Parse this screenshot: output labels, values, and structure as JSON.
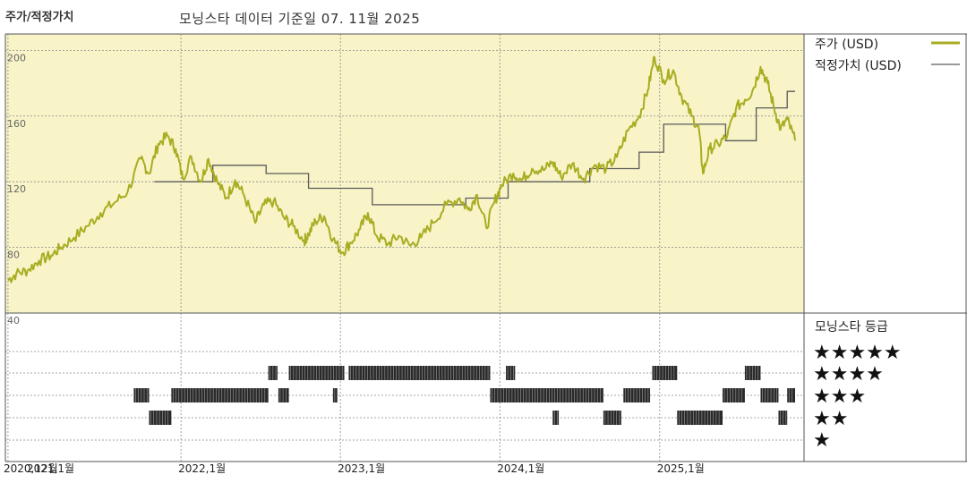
{
  "header": {
    "left_title": "주가/적정가치",
    "center_title": "모닝스타 데이터 기준일 07. 11월 2025"
  },
  "legend": {
    "price_label": "주가 (USD)",
    "fair_label": "적정가치 (USD)",
    "rating_title": "모닝스타 등급",
    "stars": [
      "★★★★★",
      "★★★★",
      "★★★",
      "★★",
      "★"
    ]
  },
  "colors": {
    "price_line": "#a8ad22",
    "fair_line": "#5a5a5a",
    "plot_bg": "#f8f4c8",
    "rating_bar": "#2a2a2a",
    "grid": "#888888"
  },
  "chart_data": [
    {
      "type": "line",
      "title": "",
      "ylim": [
        40,
        210
      ],
      "yticks": [
        40,
        80,
        120,
        160,
        200
      ],
      "x_tick_labels": [
        "2021,1월",
        "2022,1월",
        "2023,1월",
        "2024,1월",
        "2025,1월"
      ],
      "x_tick_overlap_label": "2020,12월",
      "series": [
        {
          "name": "주가 (USD)",
          "points": [
            [
              "2020-12-01",
              60
            ],
            [
              "2020-12-20",
              64
            ],
            [
              "2021-01-15",
              66
            ],
            [
              "2021-02-10",
              72
            ],
            [
              "2021-03-10",
              75
            ],
            [
              "2021-04-01",
              80
            ],
            [
              "2021-05-01",
              86
            ],
            [
              "2021-06-01",
              93
            ],
            [
              "2021-07-01",
              101
            ],
            [
              "2021-08-01",
              107
            ],
            [
              "2021-09-01",
              114
            ],
            [
              "2021-10-01",
              134
            ],
            [
              "2021-10-20",
              125
            ],
            [
              "2021-11-10",
              143
            ],
            [
              "2021-12-01",
              148
            ],
            [
              "2021-12-20",
              140
            ],
            [
              "2022-01-05",
              122
            ],
            [
              "2022-01-25",
              135
            ],
            [
              "2022-02-15",
              120
            ],
            [
              "2022-03-05",
              134
            ],
            [
              "2022-03-25",
              120
            ],
            [
              "2022-04-15",
              110
            ],
            [
              "2022-05-05",
              121
            ],
            [
              "2022-05-25",
              112
            ],
            [
              "2022-06-20",
              95
            ],
            [
              "2022-07-10",
              106
            ],
            [
              "2022-08-01",
              108
            ],
            [
              "2022-08-25",
              98
            ],
            [
              "2022-09-15",
              93
            ],
            [
              "2022-10-10",
              84
            ],
            [
              "2022-10-20",
              88
            ],
            [
              "2022-11-05",
              96
            ],
            [
              "2022-11-25",
              99
            ],
            [
              "2022-12-15",
              85
            ],
            [
              "2023-01-05",
              77
            ],
            [
              "2023-01-25",
              83
            ],
            [
              "2023-02-15",
              91
            ],
            [
              "2023-03-05",
              101
            ],
            [
              "2023-03-25",
              87
            ],
            [
              "2023-04-20",
              82
            ],
            [
              "2023-05-15",
              87
            ],
            [
              "2023-06-10",
              81
            ],
            [
              "2023-07-05",
              86
            ],
            [
              "2023-08-01",
              95
            ],
            [
              "2023-09-01",
              106
            ],
            [
              "2023-10-01",
              110
            ],
            [
              "2023-10-20",
              103
            ],
            [
              "2023-11-10",
              112
            ],
            [
              "2023-12-01",
              92
            ],
            [
              "2023-12-20",
              108
            ],
            [
              "2024-01-05",
              118
            ],
            [
              "2024-02-01",
              125
            ],
            [
              "2024-02-20",
              121
            ],
            [
              "2024-03-15",
              128
            ],
            [
              "2024-04-10",
              127
            ],
            [
              "2024-05-01",
              132
            ],
            [
              "2024-05-20",
              123
            ],
            [
              "2024-06-15",
              131
            ],
            [
              "2024-07-10",
              122
            ],
            [
              "2024-08-05",
              130
            ],
            [
              "2024-09-01",
              128
            ],
            [
              "2024-09-25",
              135
            ],
            [
              "2024-10-20",
              151
            ],
            [
              "2024-11-15",
              160
            ],
            [
              "2024-12-05",
              176
            ],
            [
              "2024-12-20",
              196
            ],
            [
              "2025-01-10",
              182
            ],
            [
              "2025-02-01",
              188
            ],
            [
              "2025-02-20",
              172
            ],
            [
              "2025-03-15",
              160
            ],
            [
              "2025-04-01",
              152
            ],
            [
              "2025-04-10",
              125
            ],
            [
              "2025-04-25",
              140
            ],
            [
              "2025-05-15",
              143
            ],
            [
              "2025-06-05",
              148
            ],
            [
              "2025-06-25",
              165
            ],
            [
              "2025-07-15",
              170
            ],
            [
              "2025-08-01",
              175
            ],
            [
              "2025-08-20",
              190
            ],
            [
              "2025-09-05",
              180
            ],
            [
              "2025-09-20",
              165
            ],
            [
              "2025-10-05",
              152
            ],
            [
              "2025-10-20",
              158
            ],
            [
              "2025-11-07",
              145
            ]
          ]
        },
        {
          "name": "적정가치 (USD)",
          "steps": [
            [
              "2021-11-01",
              120
            ],
            [
              "2022-03-15",
              130
            ],
            [
              "2022-07-15",
              125
            ],
            [
              "2022-10-20",
              116
            ],
            [
              "2023-03-15",
              106
            ],
            [
              "2023-10-15",
              110
            ],
            [
              "2024-01-20",
              120
            ],
            [
              "2024-07-25",
              128
            ],
            [
              "2024-11-15",
              138
            ],
            [
              "2025-01-10",
              155
            ],
            [
              "2025-06-01",
              145
            ],
            [
              "2025-08-10",
              165
            ],
            [
              "2025-10-20",
              175
            ]
          ]
        }
      ]
    },
    {
      "type": "heatmap",
      "title": "모닝스타 등급",
      "rows": [
        "★★★★★",
        "★★★★",
        "★★★",
        "★★",
        "★"
      ],
      "segments": [
        {
          "rating": 3,
          "start": "2021-09-15",
          "end": "2021-10-20"
        },
        {
          "rating": 2,
          "start": "2021-10-20",
          "end": "2021-12-10"
        },
        {
          "rating": 3,
          "start": "2021-12-10",
          "end": "2022-07-20"
        },
        {
          "rating": 4,
          "start": "2022-07-20",
          "end": "2022-08-10"
        },
        {
          "rating": 3,
          "start": "2022-08-12",
          "end": "2022-09-05"
        },
        {
          "rating": 4,
          "start": "2022-09-05",
          "end": "2023-01-10"
        },
        {
          "rating": 3,
          "start": "2022-12-15",
          "end": "2022-12-25"
        },
        {
          "rating": 4,
          "start": "2023-01-20",
          "end": "2023-12-10"
        },
        {
          "rating": 3,
          "start": "2023-12-10",
          "end": "2024-05-25"
        },
        {
          "rating": 4,
          "start": "2024-01-15",
          "end": "2024-02-05"
        },
        {
          "rating": 2,
          "start": "2024-05-01",
          "end": "2024-05-15"
        },
        {
          "rating": 3,
          "start": "2024-05-01",
          "end": "2024-08-25"
        },
        {
          "rating": 2,
          "start": "2024-08-25",
          "end": "2024-10-05"
        },
        {
          "rating": 3,
          "start": "2024-10-10",
          "end": "2024-12-10"
        },
        {
          "rating": 4,
          "start": "2024-12-15",
          "end": "2025-02-10"
        },
        {
          "rating": 2,
          "start": "2025-02-10",
          "end": "2025-05-25"
        },
        {
          "rating": 3,
          "start": "2025-05-25",
          "end": "2025-07-15"
        },
        {
          "rating": 4,
          "start": "2025-07-15",
          "end": "2025-08-20"
        },
        {
          "rating": 3,
          "start": "2025-08-20",
          "end": "2025-09-30"
        },
        {
          "rating": 2,
          "start": "2025-09-30",
          "end": "2025-10-20"
        },
        {
          "rating": 3,
          "start": "2025-10-20",
          "end": "2025-11-07"
        }
      ]
    }
  ]
}
